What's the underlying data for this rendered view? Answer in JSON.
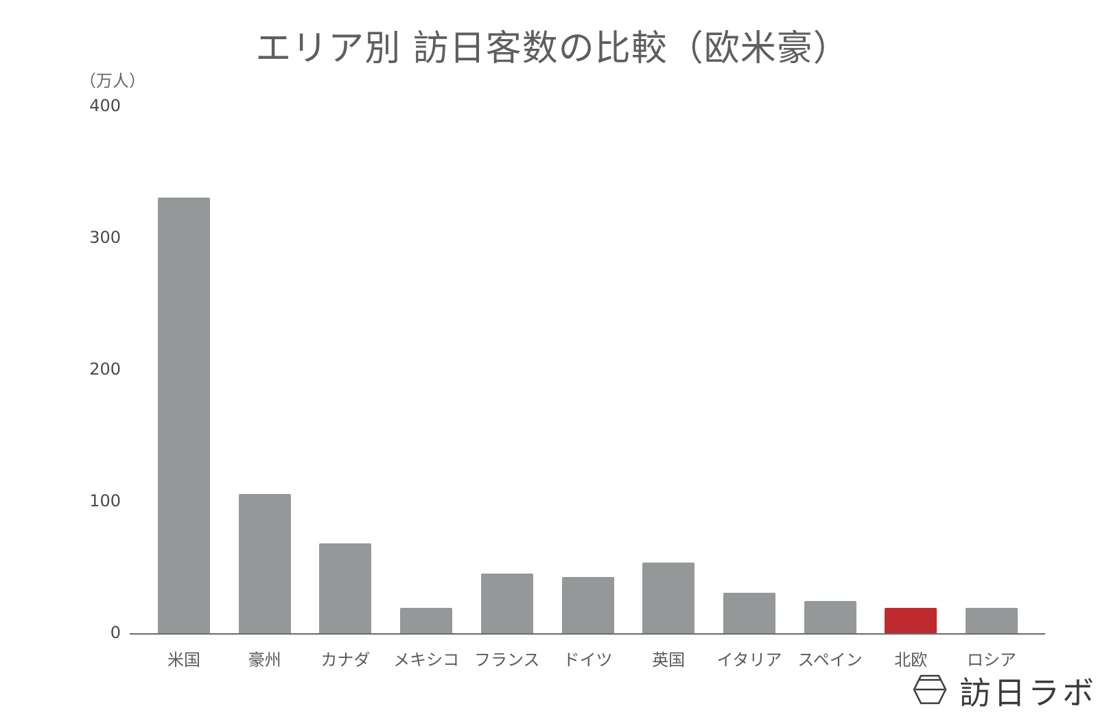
{
  "title": "エリア別 訪日客数の比較（欧米豪）",
  "unit_label": "（万人）",
  "colors": {
    "default_bar": "#959898",
    "highlight_bar": "#BE2A30",
    "axis": "#6b6b6b"
  },
  "brand": {
    "name": "訪日ラボ",
    "icon": "hexagon-logo-icon"
  },
  "y_ticks": [
    "400",
    "300",
    "200",
    "100",
    "0"
  ],
  "chart_data": {
    "type": "bar",
    "title": "エリア別 訪日客数の比較（欧米豪）",
    "xlabel": "",
    "ylabel": "（万人）",
    "ylim": [
      0,
      400
    ],
    "yticks": [
      0,
      100,
      200,
      300,
      400
    ],
    "grid": false,
    "legend": null,
    "categories": [
      "米国",
      "豪州",
      "カナダ",
      "メキシコ",
      "フランス",
      "ドイツ",
      "英国",
      "イタリア",
      "スペイン",
      "北欧",
      "ロシア"
    ],
    "values": [
      331,
      106,
      69,
      20,
      46,
      43,
      54,
      31,
      25,
      20,
      20
    ],
    "highlight": [
      "北欧"
    ]
  }
}
